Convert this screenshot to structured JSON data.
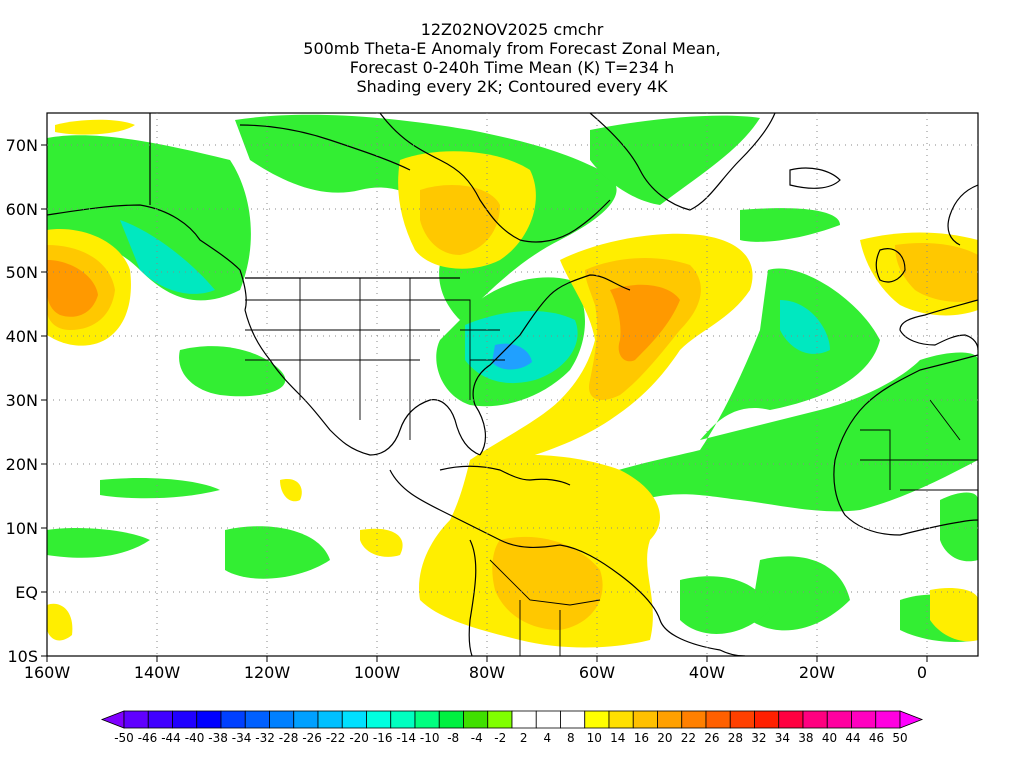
{
  "title": {
    "line1": "12Z02NOV2025 cmchr",
    "line2": "500mb Theta-E Anomaly from Forecast Zonal Mean,",
    "line3": "Forecast 0-240h Time Mean (K) T=234 h",
    "line4": "Shading every 2K; Contoured every 4K"
  },
  "axes": {
    "lat_labels": [
      "70N",
      "60N",
      "50N",
      "40N",
      "30N",
      "20N",
      "10N",
      "EQ",
      "10S"
    ],
    "lon_labels": [
      "160W",
      "140W",
      "120W",
      "100W",
      "80W",
      "60W",
      "40W",
      "20W",
      "0"
    ]
  },
  "colorbar": {
    "labels": [
      "-50",
      "-46",
      "-44",
      "-40",
      "-38",
      "-34",
      "-32",
      "-28",
      "-26",
      "-22",
      "-20",
      "-16",
      "-14",
      "-10",
      "-8",
      "-4",
      "-2",
      "2",
      "4",
      "8",
      "10",
      "14",
      "16",
      "20",
      "22",
      "26",
      "28",
      "32",
      "34",
      "38",
      "40",
      "44",
      "46",
      "50"
    ],
    "colors": [
      "#8000ff",
      "#6000ff",
      "#4000ff",
      "#2000ff",
      "#0000ff",
      "#0040ff",
      "#0060ff",
      "#0080ff",
      "#00a0ff",
      "#00c0ff",
      "#00e0ff",
      "#00ffe0",
      "#00ffc0",
      "#00ff80",
      "#00f040",
      "#40e000",
      "#80ff00",
      "#ffffff",
      "#ffffff",
      "#ffffff",
      "#ffff00",
      "#ffe000",
      "#ffc000",
      "#ffa000",
      "#ff8000",
      "#ff6000",
      "#ff4000",
      "#ff2000",
      "#ff0040",
      "#ff0080",
      "#ff00a0",
      "#ff00c0",
      "#ff00e0",
      "#ff00ff"
    ]
  },
  "colors": {
    "green": "#33ee33",
    "cyan": "#00e8c0",
    "teal": "#00d8b0",
    "blue_core": "#20a0ff",
    "yellow": "#ffee00",
    "gold": "#ffc800",
    "orange": "#ff9900",
    "deep_orange": "#ff7a20",
    "coast": "#000000"
  }
}
